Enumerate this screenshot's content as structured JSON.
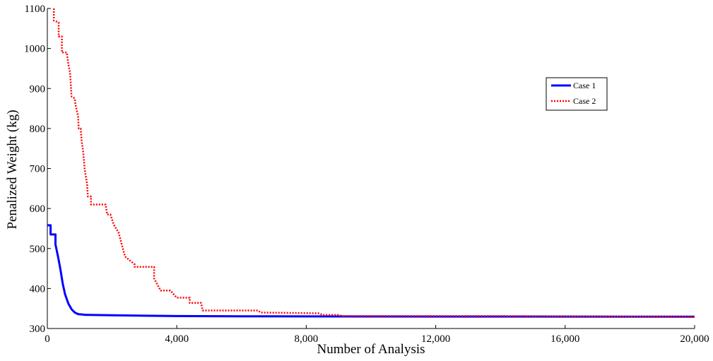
{
  "chart_data": {
    "type": "line",
    "xlabel": "Number of Analysis",
    "ylabel": "Penalized Weight (kg)",
    "xlim": [
      0,
      20000
    ],
    "ylim": [
      300,
      1100
    ],
    "x_ticks": [
      0,
      4000,
      8000,
      12000,
      16000,
      20000
    ],
    "x_tick_labels": [
      "0",
      "4,000",
      "8,000",
      "12,000",
      "16,000",
      "20,000"
    ],
    "y_ticks": [
      300,
      400,
      500,
      600,
      700,
      800,
      900,
      1000,
      1100
    ],
    "y_tick_labels": [
      "300",
      "400",
      "500",
      "600",
      "700",
      "800",
      "900",
      "1000",
      "1100"
    ],
    "grid": false,
    "legend_position": "right",
    "series": [
      {
        "name": "Case 1",
        "color": "#0000ff",
        "style": "solid",
        "points": [
          [
            0,
            558
          ],
          [
            100,
            558
          ],
          [
            100,
            535
          ],
          [
            250,
            535
          ],
          [
            250,
            510
          ],
          [
            330,
            480
          ],
          [
            400,
            450
          ],
          [
            480,
            410
          ],
          [
            550,
            385
          ],
          [
            650,
            362
          ],
          [
            750,
            348
          ],
          [
            850,
            340
          ],
          [
            950,
            336
          ],
          [
            1200,
            334
          ],
          [
            2000,
            333
          ],
          [
            3000,
            332
          ],
          [
            4000,
            331
          ],
          [
            6000,
            330.5
          ],
          [
            10000,
            330
          ],
          [
            20000,
            329.5
          ]
        ]
      },
      {
        "name": "Case 2",
        "color": "#ff0000",
        "style": "dotted",
        "points": [
          [
            200,
            1100
          ],
          [
            200,
            1070
          ],
          [
            350,
            1065
          ],
          [
            350,
            1030
          ],
          [
            450,
            1030
          ],
          [
            450,
            990
          ],
          [
            600,
            990
          ],
          [
            650,
            960
          ],
          [
            700,
            940
          ],
          [
            750,
            880
          ],
          [
            850,
            875
          ],
          [
            870,
            860
          ],
          [
            950,
            830
          ],
          [
            970,
            800
          ],
          [
            1030,
            800
          ],
          [
            1060,
            770
          ],
          [
            1110,
            740
          ],
          [
            1150,
            700
          ],
          [
            1230,
            660
          ],
          [
            1250,
            630
          ],
          [
            1350,
            630
          ],
          [
            1350,
            610
          ],
          [
            1800,
            610
          ],
          [
            1850,
            585
          ],
          [
            1950,
            585
          ],
          [
            2050,
            560
          ],
          [
            2200,
            540
          ],
          [
            2300,
            510
          ],
          [
            2400,
            480
          ],
          [
            2550,
            470
          ],
          [
            2700,
            460
          ],
          [
            2700,
            454
          ],
          [
            3300,
            454
          ],
          [
            3300,
            425
          ],
          [
            3500,
            395
          ],
          [
            3800,
            395
          ],
          [
            4000,
            377
          ],
          [
            4400,
            377
          ],
          [
            4400,
            364
          ],
          [
            4750,
            364
          ],
          [
            4800,
            345
          ],
          [
            6500,
            345
          ],
          [
            6600,
            340
          ],
          [
            8400,
            338
          ],
          [
            8500,
            334
          ],
          [
            9000,
            334
          ],
          [
            9100,
            331
          ],
          [
            14000,
            331
          ],
          [
            20000,
            329
          ]
        ]
      }
    ]
  }
}
